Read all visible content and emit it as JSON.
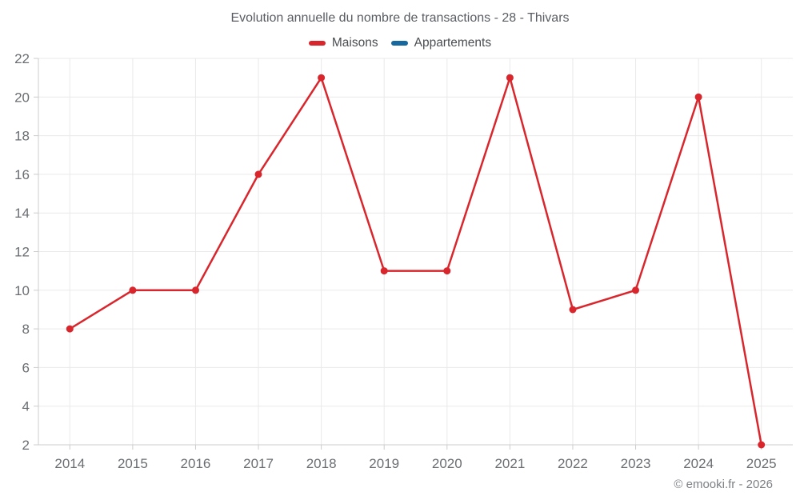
{
  "chart_data": {
    "type": "line",
    "title": "Evolution annuelle du nombre de transactions - 28 - Thivars",
    "categories": [
      "2014",
      "2015",
      "2016",
      "2017",
      "2018",
      "2019",
      "2020",
      "2021",
      "2022",
      "2023",
      "2024",
      "2025"
    ],
    "series": [
      {
        "name": "Maisons",
        "color": "#d8262c",
        "values": [
          8,
          10,
          10,
          16,
          21,
          11,
          11,
          21,
          9,
          10,
          20,
          2
        ]
      },
      {
        "name": "Appartements",
        "color": "#17689e",
        "values": []
      }
    ],
    "xlabel": "",
    "ylabel": "",
    "ylim": [
      2,
      22
    ],
    "yticks": [
      2,
      4,
      6,
      8,
      10,
      12,
      14,
      16,
      18,
      20,
      22
    ],
    "grid": true,
    "legend_position": "top",
    "marker": "circle"
  },
  "colors": {
    "grid_line": "#e9e9e9",
    "axis_line": "#cccccc",
    "tick_label": "#6a6e72"
  },
  "footer": {
    "copyright": "© emooki.fr - 2026"
  }
}
